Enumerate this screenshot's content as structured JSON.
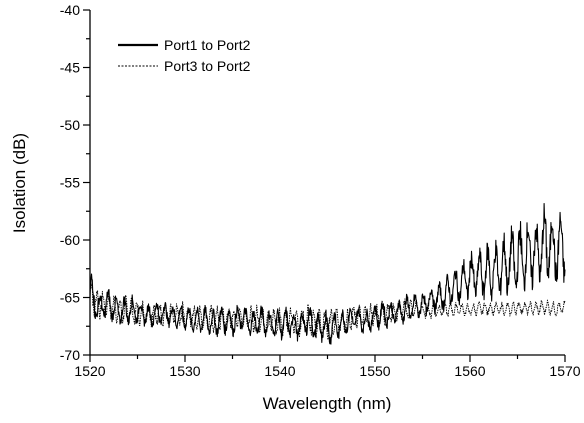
{
  "chart_data": {
    "type": "line",
    "title": "",
    "xlabel": "Wavelength (nm)",
    "ylabel": "Isolation (dB)",
    "xlim": [
      1520,
      1570
    ],
    "ylim": [
      -70,
      -40
    ],
    "x_ticks": [
      1520,
      1530,
      1540,
      1550,
      1560,
      1570
    ],
    "y_ticks": [
      -40,
      -45,
      -50,
      -55,
      -60,
      -65,
      -70
    ],
    "x_tick_labels": [
      "1520",
      "1530",
      "1540",
      "1550",
      "1560",
      "1570"
    ],
    "y_tick_labels": [
      "-40",
      "-45",
      "-50",
      "-55",
      "-60",
      "-65",
      "-70"
    ],
    "grid": false,
    "legend_position": "top-left",
    "series": [
      {
        "name": "Port1 to Port2",
        "style": "solid",
        "color": "#000000",
        "x": [
          1520,
          1521,
          1522,
          1523,
          1524,
          1525,
          1526,
          1527,
          1528,
          1529,
          1530,
          1531,
          1532,
          1533,
          1534,
          1535,
          1536,
          1537,
          1538,
          1539,
          1540,
          1541,
          1542,
          1543,
          1544,
          1545,
          1546,
          1547,
          1548,
          1549,
          1550,
          1551,
          1552,
          1553,
          1554,
          1555,
          1556,
          1557,
          1558,
          1559,
          1560,
          1561,
          1562,
          1563,
          1564,
          1565,
          1566,
          1567,
          1568,
          1569,
          1570
        ],
        "lower": [
          -67.5,
          -67.2,
          -67.0,
          -67.5,
          -67.6,
          -67.4,
          -67.6,
          -67.8,
          -67.6,
          -67.8,
          -68.0,
          -68.2,
          -68.2,
          -68.6,
          -68.3,
          -68.5,
          -68.0,
          -68.6,
          -68.4,
          -68.6,
          -68.8,
          -68.7,
          -68.9,
          -68.4,
          -69.3,
          -69.5,
          -68.9,
          -68.3,
          -68.0,
          -68.3,
          -67.9,
          -67.9,
          -67.5,
          -67.5,
          -67.3,
          -67.0,
          -66.6,
          -66.4,
          -66.0,
          -65.8,
          -65.5,
          -65.5,
          -65.7,
          -65.5,
          -65.5,
          -65.2,
          -65.0,
          -64.5,
          -64.3,
          -64.5,
          -64.2
        ],
        "upper": [
          -62.0,
          -64.5,
          -64.0,
          -65.0,
          -64.5,
          -65.0,
          -65.5,
          -65.0,
          -65.2,
          -65.5,
          -65.4,
          -65.8,
          -65.6,
          -65.9,
          -65.5,
          -65.7,
          -65.5,
          -66.0,
          -65.6,
          -66.0,
          -65.8,
          -65.7,
          -66.2,
          -65.5,
          -66.0,
          -65.8,
          -66.0,
          -65.8,
          -65.5,
          -66.0,
          -65.3,
          -65.0,
          -65.3,
          -64.7,
          -64.5,
          -64.3,
          -63.7,
          -63.5,
          -62.5,
          -61.8,
          -60.8,
          -60.5,
          -59.8,
          -59.8,
          -58.6,
          -58.2,
          -57.5,
          -57.8,
          -56.3,
          -57.2,
          -56.8
        ]
      },
      {
        "name": "Port3 to Port2",
        "style": "dashed",
        "color": "#000000",
        "x": [
          1520,
          1521,
          1522,
          1523,
          1524,
          1525,
          1526,
          1527,
          1528,
          1529,
          1530,
          1531,
          1532,
          1533,
          1534,
          1535,
          1536,
          1537,
          1538,
          1539,
          1540,
          1541,
          1542,
          1543,
          1544,
          1545,
          1546,
          1547,
          1548,
          1549,
          1550,
          1551,
          1552,
          1553,
          1554,
          1555,
          1556,
          1557,
          1558,
          1559,
          1560,
          1561,
          1562,
          1563,
          1564,
          1565,
          1566,
          1567,
          1568,
          1569,
          1570
        ],
        "lower": [
          -67.5,
          -67.0,
          -67.2,
          -67.5,
          -67.4,
          -67.6,
          -67.6,
          -67.8,
          -67.6,
          -67.8,
          -67.8,
          -68.0,
          -68.0,
          -68.3,
          -68.0,
          -68.2,
          -67.8,
          -68.2,
          -68.2,
          -68.3,
          -68.5,
          -68.5,
          -68.6,
          -68.3,
          -68.8,
          -69.0,
          -68.6,
          -68.2,
          -67.8,
          -68.0,
          -67.6,
          -67.6,
          -67.3,
          -67.2,
          -67.0,
          -66.9,
          -67.0,
          -66.7,
          -66.8,
          -66.6,
          -66.8,
          -66.6,
          -66.7,
          -66.6,
          -66.8,
          -66.5,
          -66.6,
          -66.7,
          -66.6,
          -66.7,
          -66.6
        ],
        "upper": [
          -62.3,
          -64.3,
          -64.2,
          -64.8,
          -64.7,
          -65.0,
          -65.2,
          -65.0,
          -65.3,
          -65.4,
          -65.3,
          -65.5,
          -65.4,
          -65.6,
          -65.4,
          -65.5,
          -65.4,
          -65.7,
          -65.5,
          -65.7,
          -65.6,
          -65.6,
          -65.8,
          -65.4,
          -65.7,
          -65.6,
          -65.7,
          -65.6,
          -65.4,
          -65.6,
          -65.3,
          -65.1,
          -65.3,
          -64.9,
          -65.0,
          -65.4,
          -65.2,
          -65.5,
          -65.3,
          -65.4,
          -65.5,
          -65.3,
          -65.2,
          -65.4,
          -65.3,
          -65.2,
          -65.3,
          -65.2,
          -65.1,
          -65.3,
          -65.2
        ]
      }
    ]
  }
}
